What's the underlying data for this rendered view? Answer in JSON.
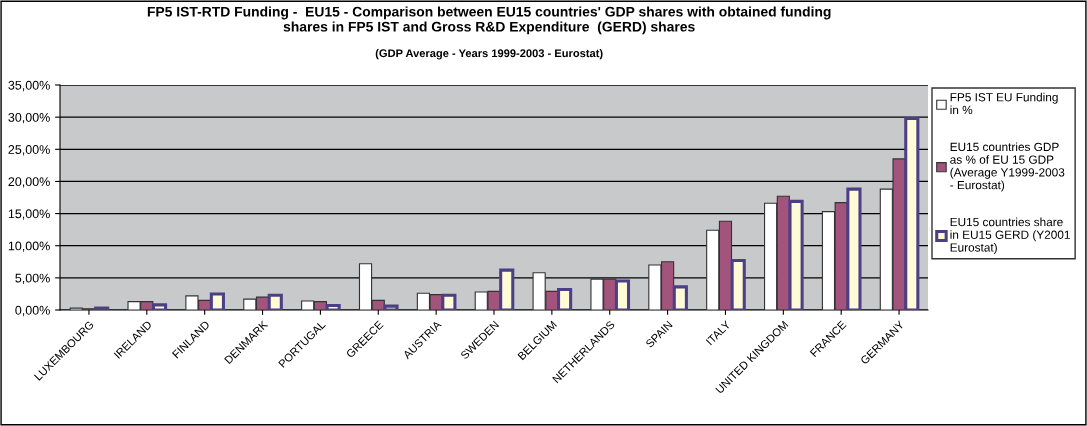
{
  "chart_data": {
    "type": "bar",
    "title": "FP5 IST-RTD Funding -  EU15 - Comparison between EU15 countries' GDP shares with obtained funding shares in FP5 IST and Gross R&D Expenditure  (GERD) shares",
    "subtitle": "(GDP Average - Years 1999-2003 - Eurostat)",
    "categories": [
      "LUXEMBOURG",
      "IRELAND",
      "FINLAND",
      "DENMARK",
      "PORTUGAL",
      "GREECE",
      "AUSTRIA",
      "SWEDEN",
      "BELGIUM",
      "NETHERLANDS",
      "SPAIN",
      "ITALY",
      "UNITED KINGDOM",
      "FRANCE",
      "GERMANY"
    ],
    "series": [
      {
        "name": "FP5 IST EU Funding in %",
        "color": "#ffffff",
        "values": [
          0.3,
          1.3,
          2.2,
          1.7,
          1.4,
          7.2,
          2.6,
          2.8,
          5.8,
          4.8,
          7.0,
          12.4,
          16.6,
          15.3,
          18.8
        ]
      },
      {
        "name": "EU15 countries GDP as % of EU 15 GDP (Average Y1999-2003 - Eurostat)",
        "color": "#a3547c",
        "values": [
          0.2,
          1.3,
          1.5,
          2.0,
          1.3,
          1.5,
          2.4,
          2.9,
          2.9,
          4.8,
          7.5,
          13.8,
          17.7,
          16.7,
          23.5
        ]
      },
      {
        "name": "EU15 countries share in EU15 GERD (Y2001 Eurostat)",
        "color": "#fffbd6",
        "values": [
          0.3,
          0.8,
          2.5,
          2.3,
          0.7,
          0.6,
          2.3,
          6.2,
          3.2,
          4.5,
          3.6,
          7.7,
          16.9,
          18.8,
          29.8
        ]
      }
    ],
    "ylim": [
      0,
      35
    ],
    "yticks": [
      {
        "value": 0,
        "label": "0,00%"
      },
      {
        "value": 5,
        "label": "5,00%"
      },
      {
        "value": 10,
        "label": "10,00%"
      },
      {
        "value": 15,
        "label": "15,00%"
      },
      {
        "value": 20,
        "label": "20,00%"
      },
      {
        "value": 25,
        "label": "25,00%"
      },
      {
        "value": 30,
        "label": "30,00%"
      },
      {
        "value": 35,
        "label": "35,00%"
      }
    ],
    "grid": "y",
    "legend": "right"
  }
}
